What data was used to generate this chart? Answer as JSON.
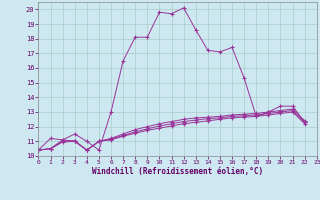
{
  "xlabel": "Windchill (Refroidissement éolien,°C)",
  "background_color": "#cde8f0",
  "grid_color": "#aacccc",
  "line_color": "#993399",
  "xlim": [
    0,
    23
  ],
  "ylim": [
    10,
    20.5
  ],
  "xticks": [
    0,
    1,
    2,
    3,
    4,
    5,
    6,
    7,
    8,
    9,
    10,
    11,
    12,
    13,
    14,
    15,
    16,
    17,
    18,
    19,
    20,
    21,
    22,
    23
  ],
  "yticks": [
    10,
    11,
    12,
    13,
    14,
    15,
    16,
    17,
    18,
    19,
    20
  ],
  "series": [
    [
      10.4,
      11.2,
      11.1,
      11.5,
      11.0,
      10.4,
      13.0,
      16.5,
      18.1,
      18.1,
      19.8,
      19.7,
      20.1,
      18.6,
      17.2,
      17.1,
      17.4,
      15.3,
      12.7,
      13.0,
      13.4,
      13.4,
      12.3
    ],
    [
      10.4,
      10.5,
      11.1,
      11.0,
      10.4,
      11.0,
      11.2,
      11.5,
      11.8,
      12.0,
      12.2,
      12.35,
      12.5,
      12.6,
      12.65,
      12.7,
      12.8,
      12.85,
      12.9,
      13.0,
      13.1,
      13.2,
      12.4
    ],
    [
      10.4,
      10.5,
      11.0,
      11.05,
      10.4,
      11.0,
      11.15,
      11.4,
      11.65,
      11.85,
      12.05,
      12.2,
      12.35,
      12.45,
      12.55,
      12.6,
      12.7,
      12.75,
      12.8,
      12.9,
      13.0,
      13.1,
      12.3
    ],
    [
      10.4,
      10.5,
      10.95,
      11.0,
      10.4,
      11.0,
      11.1,
      11.35,
      11.55,
      11.75,
      11.9,
      12.05,
      12.2,
      12.3,
      12.4,
      12.5,
      12.6,
      12.65,
      12.7,
      12.8,
      12.9,
      13.0,
      12.2
    ]
  ]
}
